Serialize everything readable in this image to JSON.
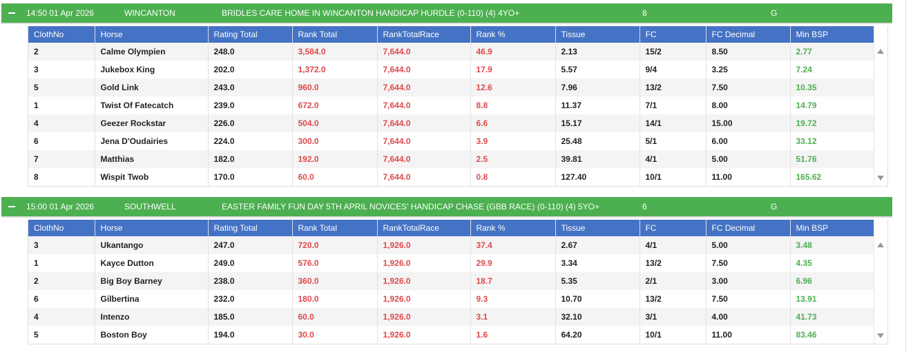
{
  "columns": [
    "ClothNo",
    "Horse",
    "Rating Total",
    "Rank Total",
    "RankTotalRace",
    "Rank %",
    "Tissue",
    "FC",
    "FC Decimal",
    "Min BSP"
  ],
  "races": [
    {
      "time": "14:50 01 Apr 2026",
      "course": "WINCANTON",
      "title": "BRIDLES CARE HOME IN WINCANTON HANDICAP HURDLE (0-110) (4) 4YO+",
      "runners": "8",
      "going": "G",
      "rows": [
        [
          "2",
          "Calme Olympien",
          "248.0",
          "3,584.0",
          "7,644.0",
          "46.9",
          "2.13",
          "15/2",
          "8.50",
          "2.77"
        ],
        [
          "3",
          "Jukebox King",
          "202.0",
          "1,372.0",
          "7,644.0",
          "17.9",
          "5.57",
          "9/4",
          "3.25",
          "7.24"
        ],
        [
          "5",
          "Gold Link",
          "243.0",
          "960.0",
          "7,644.0",
          "12.6",
          "7.96",
          "13/2",
          "7.50",
          "10.35"
        ],
        [
          "1",
          "Twist Of Fatecatch",
          "239.0",
          "672.0",
          "7,644.0",
          "8.8",
          "11.37",
          "7/1",
          "8.00",
          "14.79"
        ],
        [
          "4",
          "Geezer Rockstar",
          "226.0",
          "504.0",
          "7,644.0",
          "6.6",
          "15.17",
          "14/1",
          "15.00",
          "19.72"
        ],
        [
          "6",
          "Jena D'Oudairies",
          "224.0",
          "300.0",
          "7,644.0",
          "3.9",
          "25.48",
          "5/1",
          "6.00",
          "33.12"
        ],
        [
          "7",
          "Matthias",
          "182.0",
          "192.0",
          "7,644.0",
          "2.5",
          "39.81",
          "4/1",
          "5.00",
          "51.76"
        ],
        [
          "8",
          "Wispit Twob",
          "170.0",
          "60.0",
          "7,644.0",
          "0.8",
          "127.40",
          "10/1",
          "11.00",
          "165.62"
        ]
      ]
    },
    {
      "time": "15:00 01 Apr 2026",
      "course": "SOUTHWELL",
      "title": "EASTER FAMILY FUN DAY 5TH APRIL NOVICES' HANDICAP CHASE (GBB RACE) (0-110) (4) 5YO+",
      "runners": "6",
      "going": "G",
      "rows": [
        [
          "3",
          "Ukantango",
          "247.0",
          "720.0",
          "1,926.0",
          "37.4",
          "2.67",
          "4/1",
          "5.00",
          "3.48"
        ],
        [
          "1",
          "Kayce Dutton",
          "249.0",
          "576.0",
          "1,926.0",
          "29.9",
          "3.34",
          "13/2",
          "7.50",
          "4.35"
        ],
        [
          "2",
          "Big Boy Barney",
          "238.0",
          "360.0",
          "1,926.0",
          "18.7",
          "5.35",
          "2/1",
          "3.00",
          "6.96"
        ],
        [
          "6",
          "Gilbertina",
          "232.0",
          "180.0",
          "1,926.0",
          "9.3",
          "10.70",
          "13/2",
          "7.50",
          "13.91"
        ],
        [
          "4",
          "Intenzo",
          "185.0",
          "60.0",
          "1,926.0",
          "3.1",
          "32.10",
          "3/1",
          "4.00",
          "41.73"
        ],
        [
          "5",
          "Boston Boy",
          "194.0",
          "30.0",
          "1,926.0",
          "1.6",
          "64.20",
          "10/1",
          "11.00",
          "83.46"
        ]
      ]
    }
  ]
}
